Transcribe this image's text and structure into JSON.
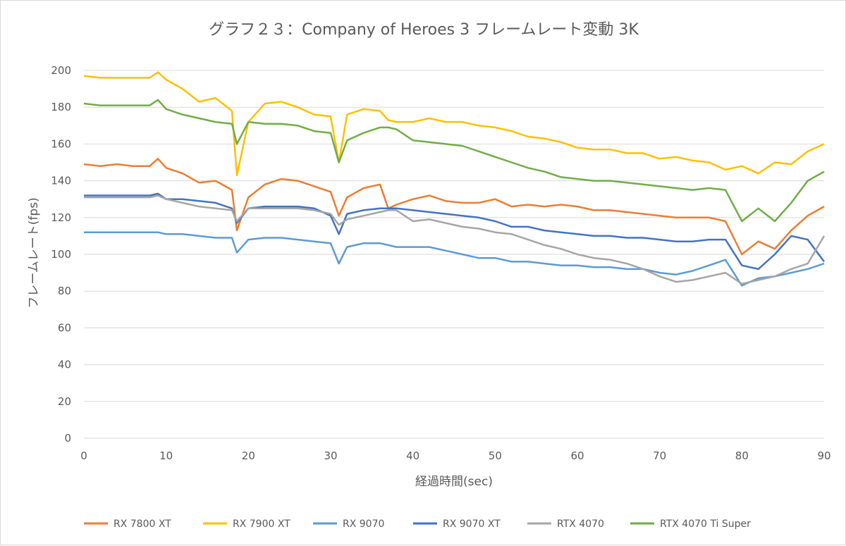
{
  "chart_data": {
    "type": "line",
    "title": "グラフ２３：Company of Heroes 3 フレームレート変動 3K",
    "xlabel": "経過時間(sec)",
    "ylabel": "フレームレート(fps)",
    "xlim": [
      0,
      90
    ],
    "ylim": [
      0,
      200
    ],
    "x_ticks": [
      "0",
      "10",
      "20",
      "30",
      "40",
      "50",
      "60",
      "70",
      "80",
      "90"
    ],
    "y_ticks": [
      "0",
      "20",
      "40",
      "60",
      "80",
      "100",
      "120",
      "140",
      "160",
      "180",
      "200"
    ],
    "grid": true,
    "legend_position": "bottom",
    "x": [
      0,
      2,
      4,
      6,
      8,
      9,
      10,
      12,
      14,
      16,
      18,
      18.6,
      20,
      22,
      24,
      26,
      28,
      30,
      31,
      32,
      34,
      36,
      37,
      38,
      40,
      42,
      44,
      46,
      48,
      50,
      52,
      54,
      56,
      58,
      60,
      62,
      64,
      66,
      68,
      70,
      72,
      74,
      76,
      78,
      80,
      82,
      84,
      86,
      88,
      90
    ],
    "series": [
      {
        "name": "RX 7800 XT",
        "color": "#ed7d31",
        "values": [
          149,
          148,
          149,
          148,
          148,
          152,
          147,
          144,
          139,
          140,
          135,
          113,
          131,
          138,
          141,
          140,
          137,
          134,
          121,
          131,
          136,
          138,
          125,
          127,
          130,
          132,
          129,
          128,
          128,
          130,
          126,
          127,
          126,
          127,
          126,
          124,
          124,
          123,
          122,
          121,
          120,
          120,
          120,
          118,
          100,
          107,
          103,
          113,
          121,
          126
        ]
      },
      {
        "name": "RX 7900 XT",
        "color": "#ffc000",
        "values": [
          197,
          196,
          196,
          196,
          196,
          199,
          195,
          190,
          183,
          185,
          178,
          143,
          172,
          182,
          183,
          180,
          176,
          175,
          150,
          176,
          179,
          178,
          173,
          172,
          172,
          174,
          172,
          172,
          170,
          169,
          167,
          164,
          163,
          161,
          158,
          157,
          157,
          155,
          155,
          152,
          153,
          151,
          150,
          146,
          148,
          144,
          150,
          149,
          156,
          160
        ]
      },
      {
        "name": "RX 9070",
        "color": "#5b9bd5",
        "values": [
          112,
          112,
          112,
          112,
          112,
          112,
          111,
          111,
          110,
          109,
          109,
          101,
          108,
          109,
          109,
          108,
          107,
          106,
          95,
          104,
          106,
          106,
          105,
          104,
          104,
          104,
          102,
          100,
          98,
          98,
          96,
          96,
          95,
          94,
          94,
          93,
          93,
          92,
          92,
          90,
          89,
          91,
          94,
          97,
          83,
          87,
          88,
          90,
          92,
          95
        ]
      },
      {
        "name": "RX 9070 XT",
        "color": "#4472c4",
        "values": [
          132,
          132,
          132,
          132,
          132,
          133,
          130,
          130,
          129,
          128,
          125,
          117,
          125,
          126,
          126,
          126,
          125,
          121,
          111,
          122,
          124,
          125,
          125,
          125,
          124,
          123,
          122,
          121,
          120,
          118,
          115,
          115,
          113,
          112,
          111,
          110,
          110,
          109,
          109,
          108,
          107,
          107,
          108,
          108,
          94,
          92,
          100,
          110,
          108,
          96
        ]
      },
      {
        "name": "RTX 4070",
        "color": "#a5a5a5",
        "values": [
          131,
          131,
          131,
          131,
          131,
          132,
          130,
          128,
          126,
          125,
          124,
          118,
          125,
          125,
          125,
          125,
          124,
          122,
          116,
          119,
          121,
          123,
          124,
          124,
          118,
          119,
          117,
          115,
          114,
          112,
          111,
          108,
          105,
          103,
          100,
          98,
          97,
          95,
          92,
          88,
          85,
          86,
          88,
          90,
          84,
          86,
          88,
          92,
          95,
          110
        ]
      },
      {
        "name": "RTX 4070 Ti Super",
        "color": "#70ad47",
        "values": [
          182,
          181,
          181,
          181,
          181,
          184,
          179,
          176,
          174,
          172,
          171,
          160,
          172,
          171,
          171,
          170,
          167,
          166,
          150,
          162,
          166,
          169,
          169,
          168,
          162,
          161,
          160,
          159,
          156,
          153,
          150,
          147,
          145,
          142,
          141,
          140,
          140,
          139,
          138,
          137,
          136,
          135,
          136,
          135,
          118,
          125,
          118,
          128,
          140,
          145
        ]
      }
    ]
  }
}
